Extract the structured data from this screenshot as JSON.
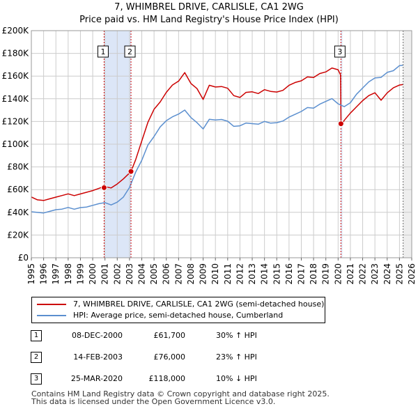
{
  "title_line1": "7, WHIMBREL DRIVE, CARLISLE, CA1 2WG",
  "title_line2": "Price paid vs. HM Land Registry's House Price Index (HPI)",
  "colors": {
    "red": "#cc0000",
    "blue": "#5b8fcf",
    "shade": "#dce6f7",
    "grid": "#cccccc"
  },
  "chart_data": {
    "type": "line",
    "xlim": [
      1995,
      2026
    ],
    "ylim": [
      0,
      200000
    ],
    "x_ticks": [
      1995,
      1996,
      1997,
      1998,
      1999,
      2000,
      2001,
      2002,
      2003,
      2004,
      2005,
      2006,
      2007,
      2008,
      2009,
      2010,
      2011,
      2012,
      2013,
      2014,
      2015,
      2016,
      2017,
      2018,
      2019,
      2020,
      2021,
      2022,
      2023,
      2024,
      2025,
      2026
    ],
    "x_tick_labels": [
      "1995",
      "1996",
      "1997",
      "1998",
      "1999",
      "2000",
      "2001",
      "2002",
      "2003",
      "2004",
      "2005",
      "2006",
      "2007",
      "2008",
      "2009",
      "2010",
      "2011",
      "2012",
      "2013",
      "2014",
      "2015",
      "2016",
      "2017",
      "2018",
      "2019",
      "2020",
      "2021",
      "2022",
      "2023",
      "2024",
      "2025",
      "2026"
    ],
    "y_ticks": [
      0,
      20000,
      40000,
      60000,
      80000,
      100000,
      120000,
      140000,
      160000,
      180000,
      200000
    ],
    "y_tick_labels": [
      "£0",
      "£20K",
      "£40K",
      "£60K",
      "£80K",
      "£100K",
      "£120K",
      "£140K",
      "£160K",
      "£180K",
      "£200K"
    ],
    "shaded_ranges": [
      [
        2000.93,
        2003.12
      ],
      [
        2020.23,
        2020.35
      ]
    ],
    "future_start": 2025.3,
    "series": [
      {
        "name": "7, WHIMBREL DRIVE, CARLISLE, CA1 2WG (semi-detached house)",
        "color": "red",
        "x": [
          1995.0,
          1995.5,
          1996.0,
          1996.5,
          1997.0,
          1997.5,
          1998.0,
          1998.5,
          1999.0,
          1999.5,
          2000.0,
          2000.5,
          2000.93,
          2001.5,
          2002.0,
          2002.5,
          2003.12,
          2003.5,
          2004.0,
          2004.5,
          2005.0,
          2005.5,
          2006.0,
          2006.5,
          2007.0,
          2007.5,
          2008.0,
          2008.5,
          2009.0,
          2009.5,
          2010.0,
          2010.5,
          2011.0,
          2011.5,
          2012.0,
          2012.5,
          2013.0,
          2013.5,
          2014.0,
          2014.5,
          2015.0,
          2015.5,
          2016.0,
          2016.5,
          2017.0,
          2017.5,
          2018.0,
          2018.5,
          2019.0,
          2019.5,
          2020.0,
          2020.2,
          2020.24,
          2020.5,
          2021.0,
          2021.5,
          2022.0,
          2022.5,
          2023.0,
          2023.5,
          2024.0,
          2024.5,
          2025.0,
          2025.3
        ],
        "y": [
          55000,
          52000,
          51000,
          52000,
          53000,
          54000,
          55000,
          56000,
          57000,
          58000,
          59000,
          60500,
          61700,
          63000,
          66000,
          70000,
          76000,
          86000,
          102000,
          118000,
          132000,
          138000,
          146000,
          152000,
          155000,
          162000,
          155000,
          150000,
          140000,
          152000,
          150000,
          150000,
          148000,
          144000,
          142000,
          146000,
          146000,
          144000,
          147000,
          148000,
          147000,
          148000,
          152000,
          154000,
          155000,
          158000,
          160000,
          163000,
          164000,
          167000,
          165000,
          160000,
          118000,
          122000,
          128000,
          133000,
          138000,
          142000,
          144000,
          140000,
          146000,
          150000,
          152000,
          152000
        ]
      },
      {
        "name": "HPI: Average price, semi-detached house, Cumberland",
        "color": "blue",
        "x": [
          1995.0,
          1995.5,
          1996.0,
          1996.5,
          1997.0,
          1997.5,
          1998.0,
          1998.5,
          1999.0,
          1999.5,
          2000.0,
          2000.5,
          2001.0,
          2001.5,
          2002.0,
          2002.5,
          2003.0,
          2003.5,
          2004.0,
          2004.5,
          2005.0,
          2005.5,
          2006.0,
          2006.5,
          2007.0,
          2007.5,
          2008.0,
          2008.5,
          2009.0,
          2009.5,
          2010.0,
          2010.5,
          2011.0,
          2011.5,
          2012.0,
          2012.5,
          2013.0,
          2013.5,
          2014.0,
          2014.5,
          2015.0,
          2015.5,
          2016.0,
          2016.5,
          2017.0,
          2017.5,
          2018.0,
          2018.5,
          2019.0,
          2019.5,
          2020.0,
          2020.5,
          2021.0,
          2021.5,
          2022.0,
          2022.5,
          2023.0,
          2023.5,
          2024.0,
          2024.5,
          2025.0,
          2025.3
        ],
        "y": [
          42000,
          41000,
          40000,
          41000,
          42000,
          42000,
          43000,
          44000,
          45000,
          45000,
          46000,
          47000,
          47500,
          48000,
          50000,
          54000,
          62000,
          75000,
          85000,
          98000,
          108000,
          116000,
          121000,
          124000,
          126000,
          129000,
          125000,
          120000,
          114000,
          122000,
          121000,
          121000,
          119000,
          117000,
          117000,
          119000,
          118000,
          117000,
          119000,
          120000,
          120000,
          121000,
          124000,
          126000,
          128000,
          131000,
          133000,
          136000,
          138000,
          140000,
          135000,
          132000,
          138000,
          145000,
          150000,
          155000,
          158000,
          158000,
          162000,
          166000,
          170000,
          170000
        ]
      }
    ],
    "sale_markers": [
      {
        "label": "1",
        "x": 2000.93,
        "y": 61700
      },
      {
        "label": "2",
        "x": 2003.12,
        "y": 76000
      },
      {
        "label": "3",
        "x": 2020.23,
        "y": 118000
      }
    ]
  },
  "legend": {
    "red_label": "7, WHIMBREL DRIVE, CARLISLE, CA1 2WG (semi-detached house)",
    "blue_label": "HPI: Average price, semi-detached house, Cumberland"
  },
  "transactions": [
    {
      "num": "1",
      "date": "08-DEC-2000",
      "price": "£61,700",
      "hpi": "30% ↑ HPI"
    },
    {
      "num": "2",
      "date": "14-FEB-2003",
      "price": "£76,000",
      "hpi": "23% ↑ HPI"
    },
    {
      "num": "3",
      "date": "25-MAR-2020",
      "price": "£118,000",
      "hpi": "10% ↓ HPI"
    }
  ],
  "footer_line1": "Contains HM Land Registry data © Crown copyright and database right 2025.",
  "footer_line2": "This data is licensed under the Open Government Licence v3.0."
}
